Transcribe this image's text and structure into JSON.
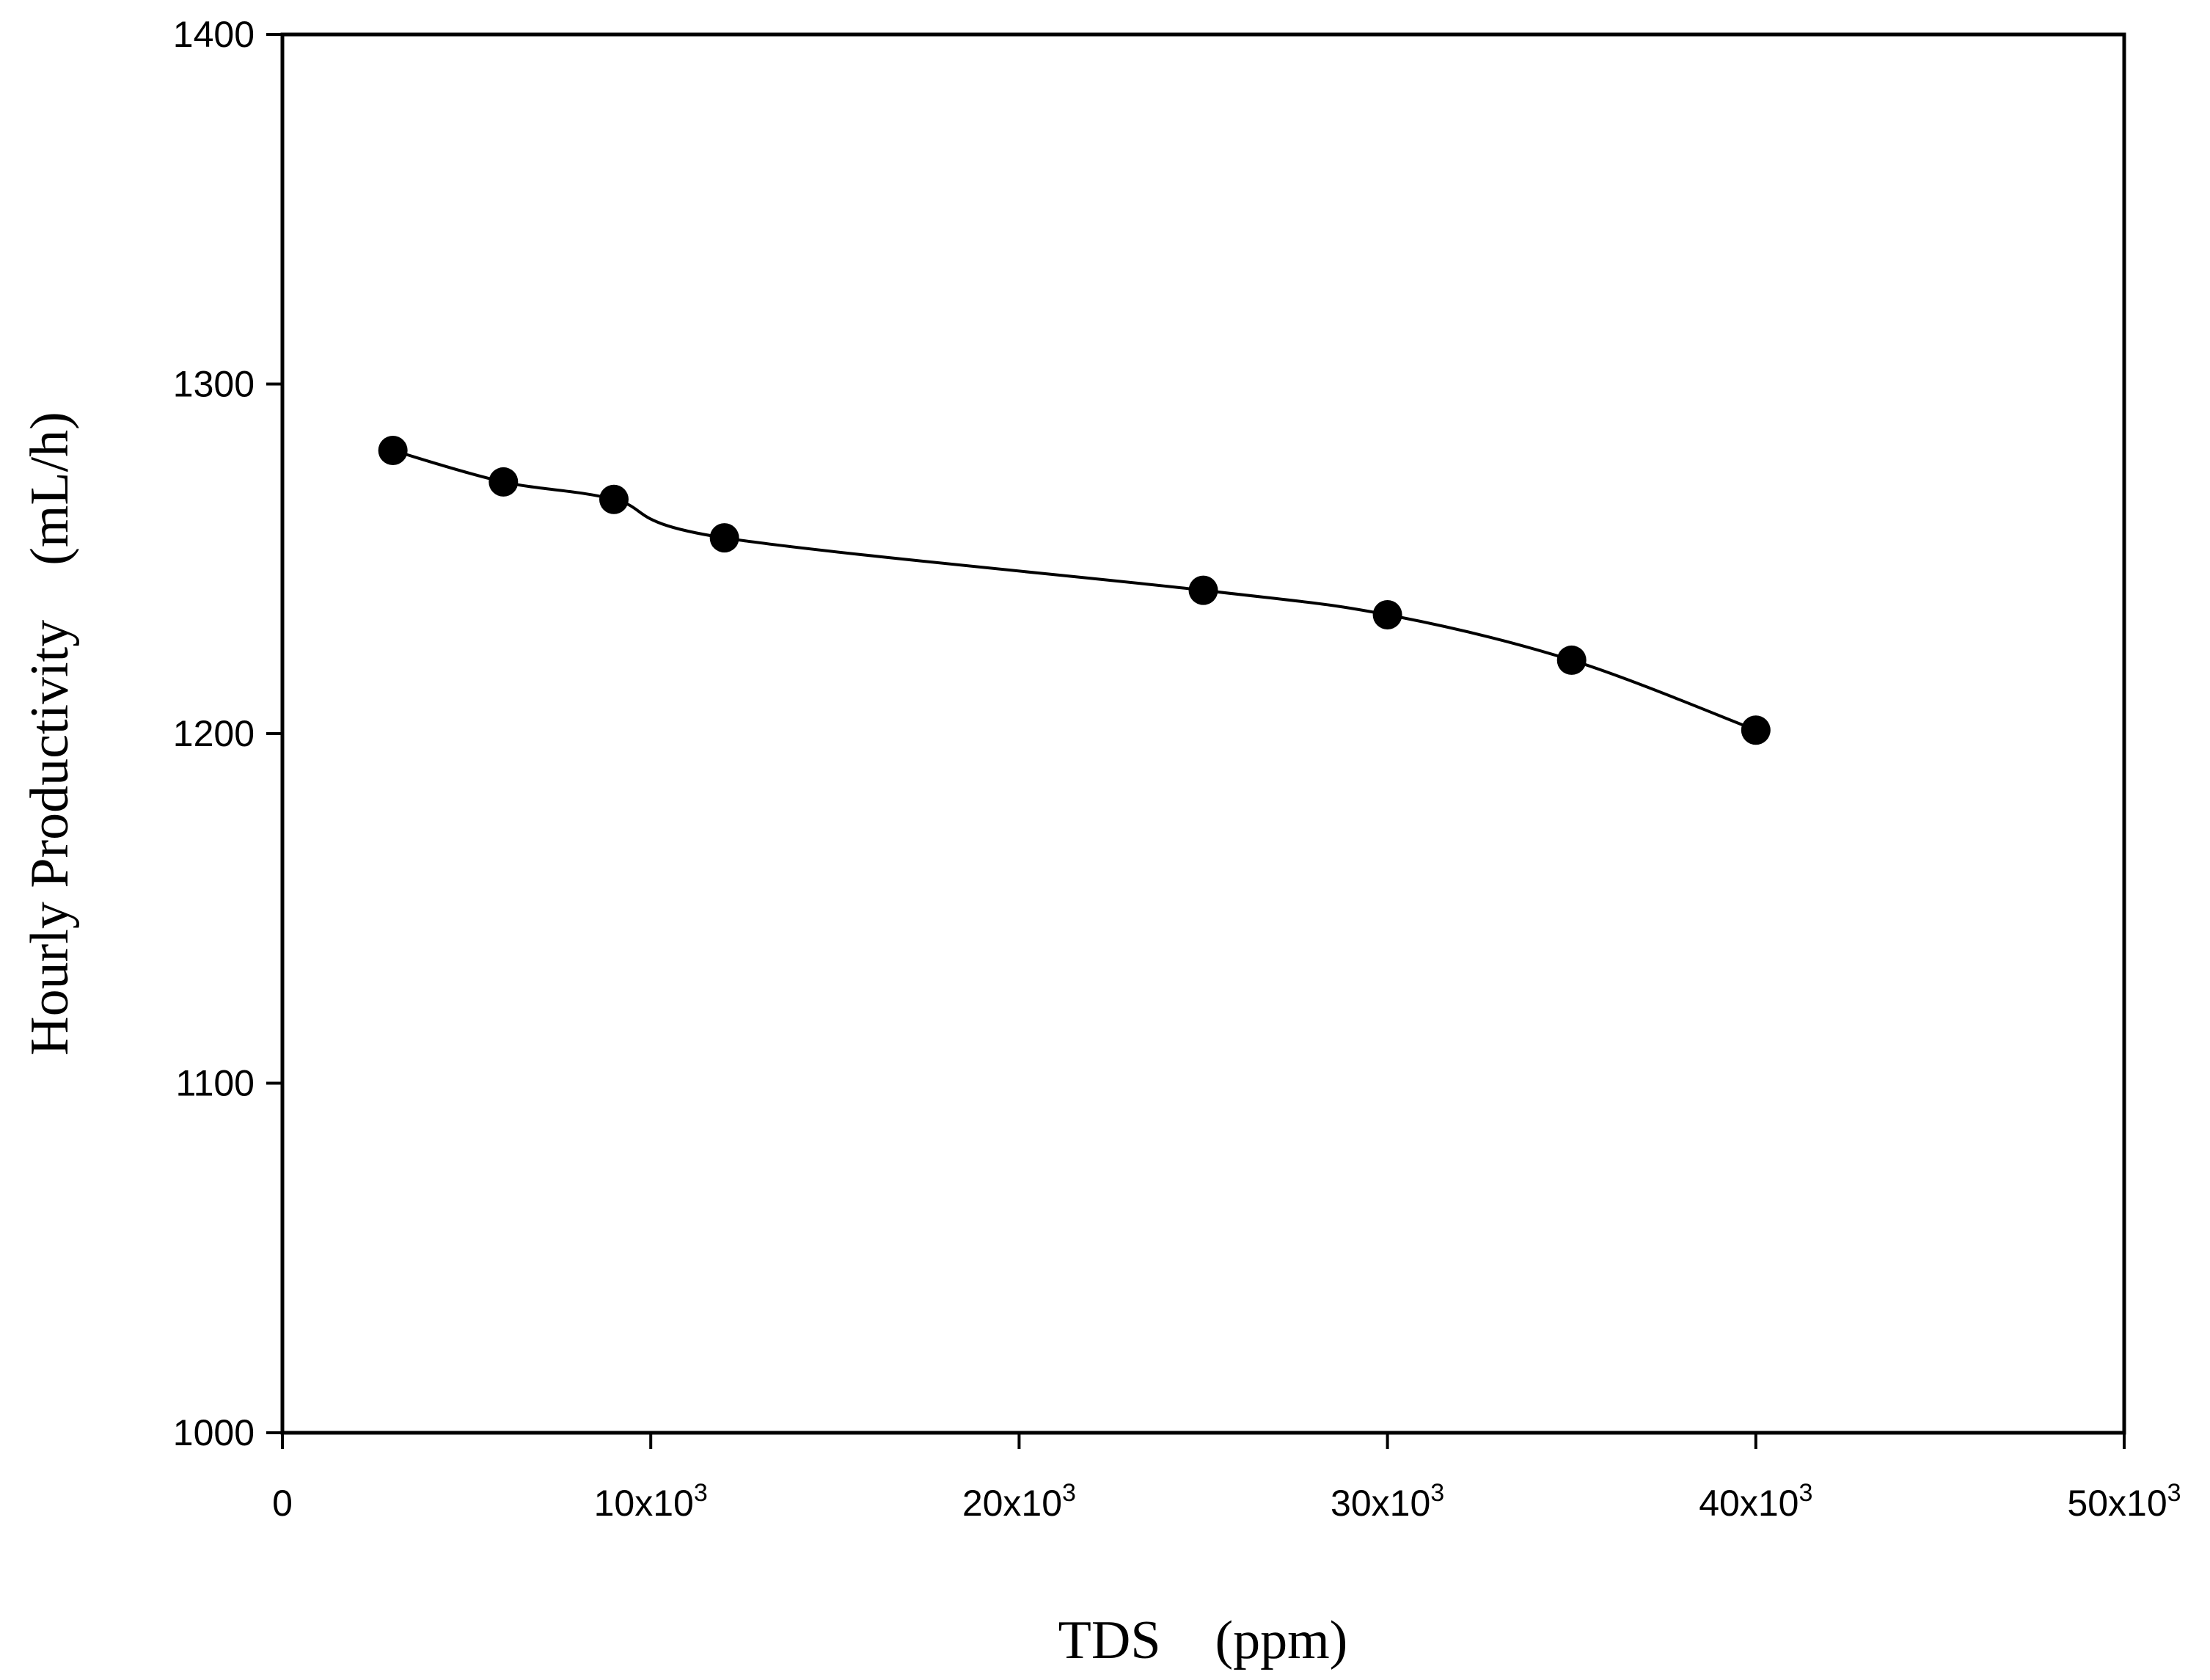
{
  "chart_data": {
    "type": "line",
    "xlabel": "TDS    (ppm)",
    "ylabel": "Hourly Productivity    (mL/h)",
    "xlim": [
      0,
      50000
    ],
    "ylim": [
      1000,
      1400
    ],
    "x_ticks": [
      {
        "value": 0,
        "base": "0",
        "exp": ""
      },
      {
        "value": 10000,
        "base": "10x10",
        "exp": "3"
      },
      {
        "value": 20000,
        "base": "20x10",
        "exp": "3"
      },
      {
        "value": 30000,
        "base": "30x10",
        "exp": "3"
      },
      {
        "value": 40000,
        "base": "40x10",
        "exp": "3"
      },
      {
        "value": 50000,
        "base": "50x10",
        "exp": "3"
      }
    ],
    "y_ticks": [
      {
        "value": 1000,
        "label": "1000"
      },
      {
        "value": 1100,
        "label": "1100"
      },
      {
        "value": 1200,
        "label": "1200"
      },
      {
        "value": 1300,
        "label": "1300"
      },
      {
        "value": 1400,
        "label": "1400"
      }
    ],
    "grid": false,
    "marker": "filled-circle",
    "line_style": "smooth",
    "series": [
      {
        "x": [
          3000,
          6000,
          9000,
          12000,
          25000,
          30000,
          35000,
          40000
        ],
        "y": [
          1281,
          1272,
          1267,
          1256,
          1241,
          1234,
          1221,
          1201
        ]
      }
    ]
  }
}
